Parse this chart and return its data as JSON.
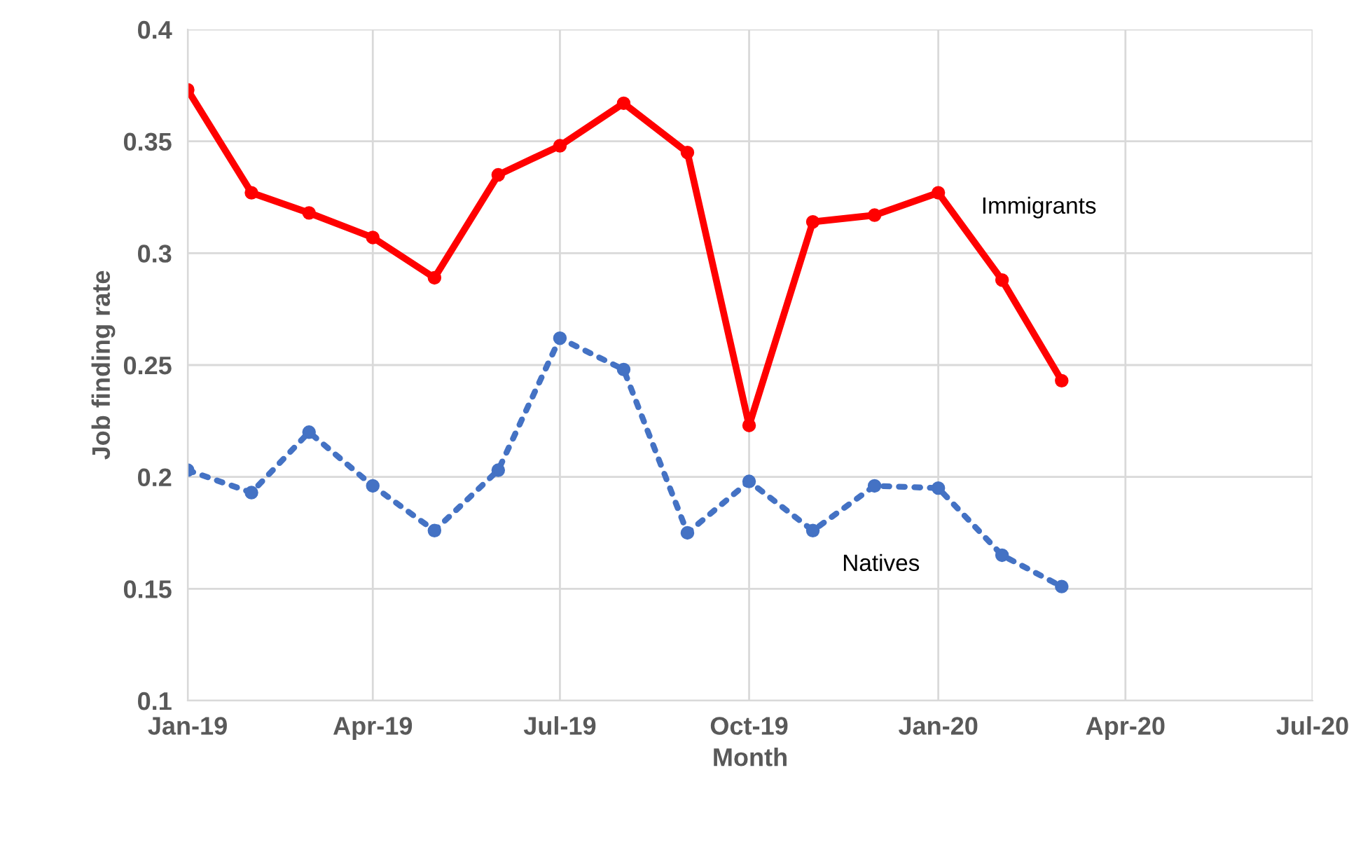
{
  "chart_data": {
    "type": "line",
    "xlabel": "Month",
    "ylabel": "Job finding rate",
    "x": [
      "2019-01",
      "2019-02",
      "2019-03",
      "2019-04",
      "2019-05",
      "2019-06",
      "2019-07",
      "2019-08",
      "2019-09",
      "2019-10",
      "2019-11",
      "2019-12",
      "2020-01",
      "2020-02",
      "2020-03"
    ],
    "series": [
      {
        "name": "Immigrants",
        "color": "#ff0000",
        "line_style": "solid",
        "values": [
          0.373,
          0.327,
          0.318,
          0.307,
          0.289,
          0.335,
          0.348,
          0.367,
          0.345,
          0.223,
          0.314,
          0.317,
          0.327,
          0.288,
          0.243
        ]
      },
      {
        "name": "Natives",
        "color": "#4472c4",
        "line_style": "dotted",
        "values": [
          0.203,
          0.193,
          0.22,
          0.196,
          0.176,
          0.203,
          0.262,
          0.248,
          0.175,
          0.198,
          0.176,
          0.196,
          0.195,
          0.165,
          0.151
        ]
      }
    ],
    "marker": "circle",
    "xlim": [
      "2019-01",
      "2020-07"
    ],
    "xticks": [
      {
        "value": "2019-01",
        "label": "Jan-19"
      },
      {
        "value": "2019-04",
        "label": "Apr-19"
      },
      {
        "value": "2019-07",
        "label": "Jul-19"
      },
      {
        "value": "2019-10",
        "label": "Oct-19"
      },
      {
        "value": "2020-01",
        "label": "Jan-20"
      },
      {
        "value": "2020-04",
        "label": "Apr-20"
      },
      {
        "value": "2020-07",
        "label": "Jul-20"
      }
    ],
    "ylim": [
      0.1,
      0.4
    ],
    "yticks": [
      0.1,
      0.15,
      0.2,
      0.25,
      0.3,
      0.35,
      0.4
    ],
    "grid": true,
    "legend": false
  }
}
